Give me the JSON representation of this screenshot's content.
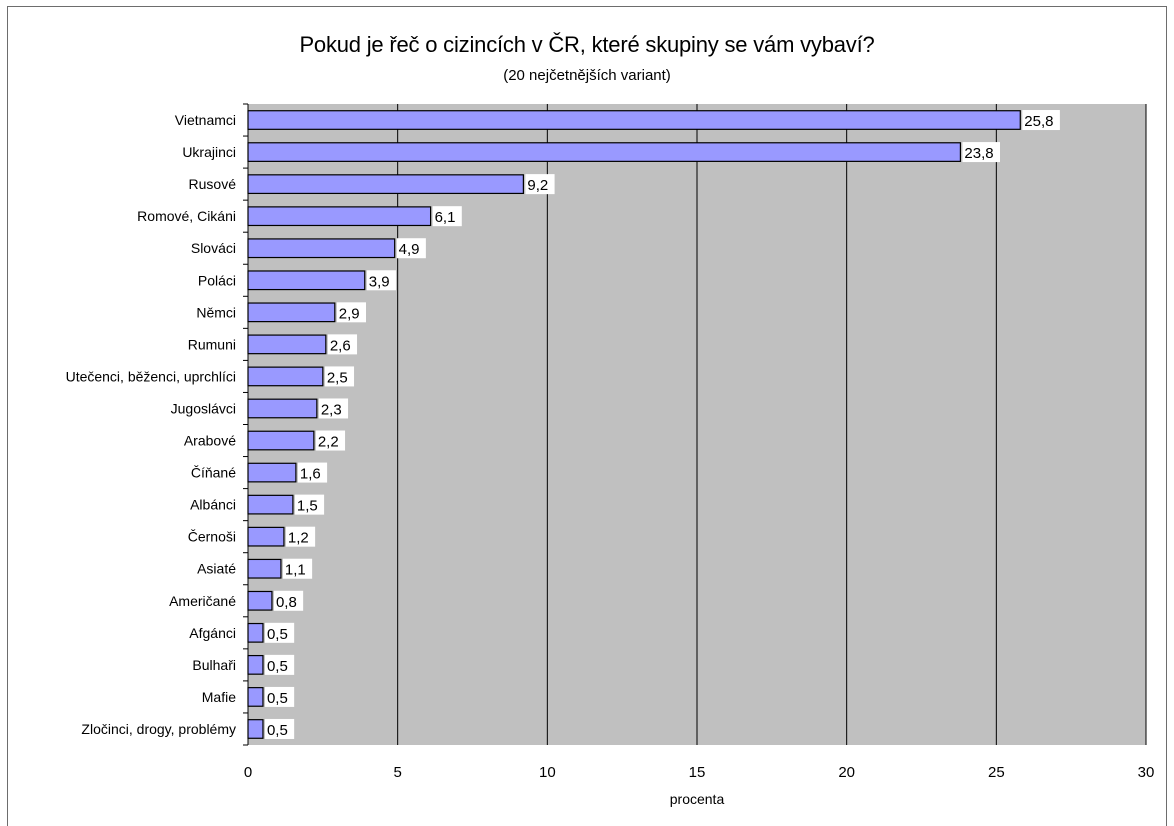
{
  "chart_data": {
    "type": "bar",
    "orientation": "horizontal",
    "title": "Pokud je řeč o cizincích v ČR, které skupiny se vám vybaví?",
    "subtitle": "(20 nejčetnějších variant)",
    "xlabel": "procenta",
    "ylabel": "",
    "xlim": [
      0,
      30
    ],
    "xticks": [
      0,
      5,
      10,
      15,
      20,
      25,
      30
    ],
    "grid": "vertical",
    "legend": "none",
    "colors": {
      "bar": "#9999ff",
      "bar_border": "#000000",
      "plot_bg": "#c0c0c0",
      "grid": "#000000"
    },
    "categories": [
      "Vietnamci",
      "Ukrajinci",
      "Rusové",
      "Romové, Cikáni",
      "Slováci",
      "Poláci",
      "Němci",
      "Rumuni",
      "Utečenci, běženci, uprchlíci",
      "Jugoslávci",
      "Arabové",
      "Číňané",
      "Albánci",
      "Černoši",
      "Asiaté",
      "Američané",
      "Afgánci",
      "Bulhaři",
      "Mafie",
      "Zločinci, drogy, problémy"
    ],
    "values": [
      25.8,
      23.8,
      9.2,
      6.1,
      4.9,
      3.9,
      2.9,
      2.6,
      2.5,
      2.3,
      2.2,
      1.6,
      1.5,
      1.2,
      1.1,
      0.8,
      0.5,
      0.5,
      0.5,
      0.5
    ],
    "value_labels": [
      "25,8",
      "23,8",
      "9,2",
      "6,1",
      "4,9",
      "3,9",
      "2,9",
      "2,6",
      "2,5",
      "2,3",
      "2,2",
      "1,6",
      "1,5",
      "1,2",
      "1,1",
      "0,8",
      "0,5",
      "0,5",
      "0,5",
      "0,5"
    ]
  }
}
